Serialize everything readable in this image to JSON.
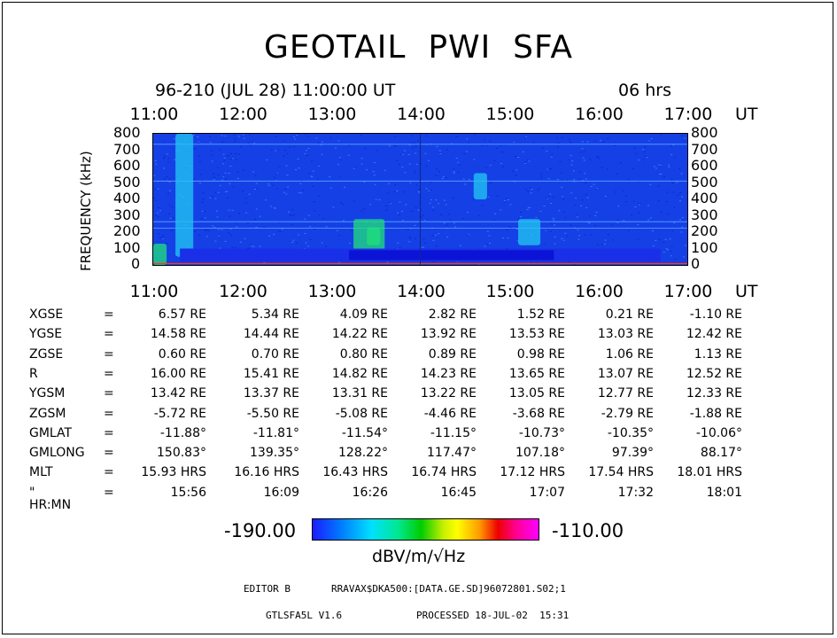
{
  "chart_data": {
    "type": "heatmap",
    "title": "GEOTAIL  PWI  SFA",
    "subtitle": "96-210 (JUL 28) 11:00:00 UT",
    "duration": "06 hrs",
    "time_unit": "UT",
    "x_ticks": [
      "11:00",
      "12:00",
      "13:00",
      "14:00",
      "15:00",
      "16:00",
      "17:00"
    ],
    "xlim_hours": [
      11,
      17
    ],
    "ylabel": "FREQUENCY (kHz)",
    "y_ticks": [
      "800",
      "700",
      "600",
      "500",
      "400",
      "300",
      "200",
      "100",
      "0"
    ],
    "ylim": [
      0,
      800
    ],
    "background_level": "blue",
    "features": [
      {
        "t_start": 11.0,
        "t_end": 11.15,
        "f_low": 0,
        "f_high": 130,
        "level": "green"
      },
      {
        "t_start": 11.25,
        "t_end": 11.45,
        "f_low": 50,
        "f_high": 800,
        "level": "cyan"
      },
      {
        "t_start": 13.25,
        "t_end": 13.6,
        "f_low": 60,
        "f_high": 280,
        "level": "green"
      },
      {
        "t_start": 13.4,
        "t_end": 13.55,
        "f_low": 120,
        "f_high": 230,
        "level": "green"
      },
      {
        "t_start": 14.6,
        "t_end": 14.75,
        "f_low": 400,
        "f_high": 560,
        "level": "cyan"
      },
      {
        "t_start": 15.1,
        "t_end": 15.35,
        "f_low": 120,
        "f_high": 280,
        "level": "cyan"
      }
    ],
    "colorbar": {
      "min": "-190.00",
      "max": "-110.00",
      "unit": "dBV/m/√Hz"
    }
  },
  "ephemeris": [
    {
      "label": "XGSE",
      "eq": "=",
      "values": [
        "6.57 RE",
        "5.34 RE",
        "4.09 RE",
        "2.82 RE",
        "1.52 RE",
        "0.21 RE",
        "-1.10 RE"
      ]
    },
    {
      "label": "YGSE",
      "eq": "=",
      "values": [
        "14.58 RE",
        "14.44 RE",
        "14.22 RE",
        "13.92 RE",
        "13.53 RE",
        "13.03 RE",
        "12.42 RE"
      ]
    },
    {
      "label": "ZGSE",
      "eq": "=",
      "values": [
        "0.60 RE",
        "0.70 RE",
        "0.80 RE",
        "0.89 RE",
        "0.98 RE",
        "1.06 RE",
        "1.13 RE"
      ]
    },
    {
      "label": "R",
      "eq": "=",
      "values": [
        "16.00 RE",
        "15.41 RE",
        "14.82 RE",
        "14.23 RE",
        "13.65 RE",
        "13.07 RE",
        "12.52 RE"
      ]
    },
    {
      "label": "YGSM",
      "eq": "=",
      "values": [
        "13.42 RE",
        "13.37 RE",
        "13.31 RE",
        "13.22 RE",
        "13.05 RE",
        "12.77 RE",
        "12.33 RE"
      ]
    },
    {
      "label": "ZGSM",
      "eq": "=",
      "values": [
        "-5.72 RE",
        "-5.50 RE",
        "-5.08 RE",
        "-4.46 RE",
        "-3.68 RE",
        "-2.79 RE",
        "-1.88 RE"
      ]
    },
    {
      "label": "GMLAT",
      "eq": "=",
      "values": [
        "-11.88°",
        "-11.81°",
        "-11.54°",
        "-11.15°",
        "-10.73°",
        "-10.35°",
        "-10.06°"
      ]
    },
    {
      "label": "GMLONG",
      "eq": "=",
      "values": [
        "150.83°",
        "139.35°",
        "128.22°",
        "117.47°",
        "107.18°",
        "97.39°",
        "88.17°"
      ]
    },
    {
      "label": "MLT",
      "eq": "=",
      "values": [
        "15.93 HRS",
        "16.16 HRS",
        "16.43 HRS",
        "16.74 HRS",
        "17.12 HRS",
        "17.54 HRS",
        "18.01 HRS"
      ]
    },
    {
      "label": "\" HR:MN",
      "eq": "=",
      "values": [
        "15:56",
        "16:09",
        "16:26",
        "16:45",
        "17:07",
        "17:32",
        "18:01"
      ]
    }
  ],
  "footer": {
    "editor": "EDITOR B",
    "path": "RRAVAX$DKA500:[DATA.GE.SD]96072801.S02;1",
    "program": "GTLSFA5L V1.6",
    "processed": "PROCESSED 18-JUL-02  15:31"
  }
}
